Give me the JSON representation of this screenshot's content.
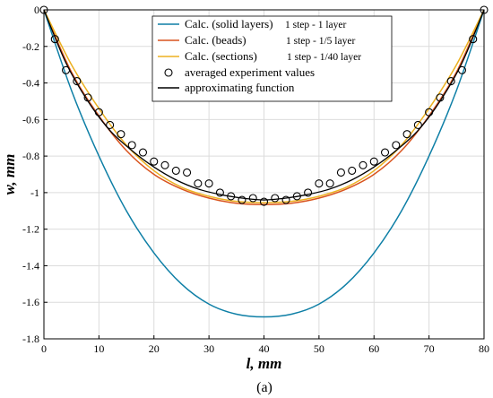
{
  "chart_data": {
    "type": "line",
    "caption": "(a)",
    "xlabel": "l, mm",
    "ylabel": "w, mm",
    "xlim": [
      0,
      80
    ],
    "ylim": [
      -1.8,
      0
    ],
    "xticks": [
      0,
      10,
      20,
      30,
      40,
      50,
      60,
      70,
      80
    ],
    "yticks": [
      0,
      -0.2,
      -0.4,
      -0.6,
      -0.8,
      -1,
      -1.2,
      -1.4,
      -1.6,
      -1.8
    ],
    "xtick_labels": [
      "0",
      "10",
      "20",
      "30",
      "40",
      "50",
      "60",
      "70",
      "80"
    ],
    "ytick_labels": [
      "0",
      "-0.2",
      "-0.4",
      "-0.6",
      "-0.8",
      "-1",
      "-1.2",
      "-1.4",
      "-1.6",
      "-1.8"
    ],
    "grid": true,
    "legend_position": "top-center",
    "series": [
      {
        "name": "Calc. (solid layers)",
        "note": "1 step - 1 layer",
        "color": "#0e7fa6",
        "kind": "line",
        "x": [
          0,
          5,
          10,
          15,
          20,
          25,
          30,
          35,
          40,
          45,
          50,
          55,
          60,
          65,
          70,
          75,
          80
        ],
        "y": [
          0,
          -0.44,
          -0.8,
          -1.1,
          -1.33,
          -1.5,
          -1.61,
          -1.665,
          -1.68,
          -1.665,
          -1.61,
          -1.5,
          -1.33,
          -1.1,
          -0.8,
          -0.44,
          0
        ]
      },
      {
        "name": "Calc. (beads)",
        "note": "1 step - 1/5 layer",
        "color": "#d9541e",
        "kind": "line",
        "x": [
          0,
          5,
          10,
          15,
          20,
          25,
          30,
          35,
          40,
          45,
          50,
          55,
          60,
          65,
          70,
          75,
          80
        ],
        "y": [
          0,
          -0.34,
          -0.58,
          -0.77,
          -0.9,
          -0.98,
          -1.03,
          -1.058,
          -1.065,
          -1.058,
          -1.03,
          -0.98,
          -0.9,
          -0.77,
          -0.58,
          -0.34,
          0
        ]
      },
      {
        "name": "Calc. (sections)",
        "note": "1 step - 1/40 layer",
        "color": "#edb120",
        "kind": "line",
        "x": [
          0,
          5,
          10,
          15,
          20,
          25,
          30,
          35,
          40,
          45,
          50,
          55,
          60,
          65,
          70,
          75,
          80
        ],
        "y": [
          0,
          -0.3,
          -0.54,
          -0.74,
          -0.88,
          -0.97,
          -1.02,
          -1.048,
          -1.055,
          -1.048,
          -1.02,
          -0.97,
          -0.88,
          -0.74,
          -0.54,
          -0.3,
          0
        ]
      },
      {
        "name": "averaged experiment values",
        "color": "#000000",
        "kind": "scatter",
        "x": [
          0,
          2,
          4,
          6,
          8,
          10,
          12,
          14,
          16,
          18,
          20,
          22,
          24,
          26,
          28,
          30,
          32,
          34,
          36,
          38,
          40,
          42,
          44,
          46,
          48,
          50,
          52,
          54,
          56,
          58,
          60,
          62,
          64,
          66,
          68,
          70,
          72,
          74,
          76,
          78,
          80
        ],
        "y": [
          0,
          -0.16,
          -0.33,
          -0.39,
          -0.48,
          -0.56,
          -0.63,
          -0.68,
          -0.74,
          -0.78,
          -0.83,
          -0.85,
          -0.88,
          -0.89,
          -0.95,
          -0.95,
          -1.0,
          -1.02,
          -1.04,
          -1.03,
          -1.05,
          -1.03,
          -1.04,
          -1.02,
          -1.0,
          -0.95,
          -0.95,
          -0.89,
          -0.88,
          -0.85,
          -0.83,
          -0.78,
          -0.74,
          -0.68,
          -0.63,
          -0.56,
          -0.48,
          -0.39,
          -0.33,
          -0.16,
          0
        ]
      },
      {
        "name": "approximating function",
        "color": "#000000",
        "kind": "line",
        "x": [
          0,
          4,
          8,
          12,
          16,
          20,
          24,
          28,
          32,
          36,
          40,
          44,
          48,
          52,
          56,
          60,
          64,
          68,
          72,
          76,
          80
        ],
        "y": [
          0,
          -0.29,
          -0.5,
          -0.66,
          -0.77,
          -0.86,
          -0.93,
          -0.98,
          -1.01,
          -1.03,
          -1.04,
          -1.03,
          -1.01,
          -0.98,
          -0.93,
          -0.86,
          -0.77,
          -0.66,
          -0.5,
          -0.29,
          0
        ]
      }
    ]
  }
}
